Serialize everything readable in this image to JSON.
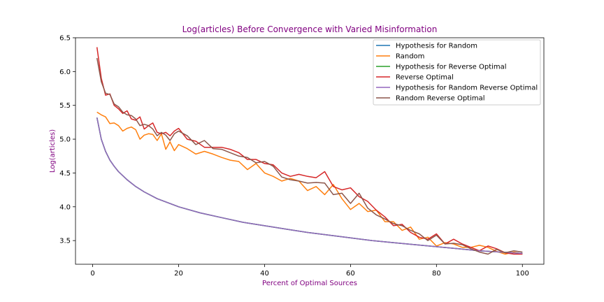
{
  "chart_data": {
    "type": "line",
    "title": "Log(articles) Before Convergence with Varied Misinformation",
    "xlabel": "Percent of Optimal Sources",
    "ylabel": "Log(articles)",
    "label_color": "#800080",
    "xlim": [
      -4,
      105
    ],
    "ylim": [
      3.15,
      6.5
    ],
    "xticks": [
      0,
      20,
      40,
      60,
      80,
      100
    ],
    "xtick_labels": [
      "0",
      "20",
      "40",
      "60",
      "80",
      "100"
    ],
    "yticks": [
      3.5,
      4.0,
      4.5,
      5.0,
      5.5,
      6.0,
      6.5
    ],
    "ytick_labels": [
      "3.5",
      "4.0",
      "4.5",
      "5.0",
      "5.5",
      "6.0",
      "6.5"
    ],
    "grid": false,
    "legend_position": "upper-right",
    "series": [
      {
        "name": "Hypothesis for Random",
        "color": "#1f77b4",
        "x": [
          1,
          2,
          3,
          4,
          5,
          6,
          8,
          10,
          12,
          15,
          20,
          25,
          30,
          35,
          40,
          45,
          50,
          55,
          60,
          65,
          70,
          75,
          80,
          85,
          90,
          95,
          100
        ],
        "y": [
          5.32,
          5.0,
          4.82,
          4.69,
          4.6,
          4.52,
          4.4,
          4.3,
          4.22,
          4.12,
          4.0,
          3.91,
          3.84,
          3.77,
          3.72,
          3.67,
          3.62,
          3.58,
          3.54,
          3.5,
          3.47,
          3.44,
          3.41,
          3.38,
          3.35,
          3.33,
          3.31
        ]
      },
      {
        "name": "Random",
        "color": "#ff7f0e",
        "x": [
          1,
          2,
          3,
          4,
          5,
          6,
          7,
          8,
          9,
          10,
          11,
          12,
          13,
          14,
          15,
          16,
          17,
          18,
          19,
          20,
          22,
          24,
          26,
          28,
          30,
          32,
          34,
          36,
          38,
          40,
          42,
          44,
          46,
          48,
          50,
          52,
          54,
          56,
          58,
          60,
          62,
          64,
          66,
          68,
          70,
          72,
          74,
          76,
          78,
          80,
          82,
          84,
          86,
          88,
          90,
          92,
          94,
          96,
          98,
          100
        ],
        "y": [
          5.4,
          5.36,
          5.33,
          5.23,
          5.24,
          5.2,
          5.12,
          5.16,
          5.18,
          5.14,
          5.0,
          5.06,
          5.08,
          5.07,
          4.98,
          5.08,
          4.85,
          4.96,
          4.83,
          4.92,
          4.86,
          4.78,
          4.82,
          4.78,
          4.73,
          4.69,
          4.67,
          4.55,
          4.64,
          4.5,
          4.45,
          4.38,
          4.42,
          4.38,
          4.24,
          4.3,
          4.18,
          4.33,
          4.12,
          3.96,
          4.05,
          3.93,
          3.95,
          3.78,
          3.78,
          3.65,
          3.7,
          3.52,
          3.55,
          3.42,
          3.47,
          3.45,
          3.4,
          3.4,
          3.43,
          3.4,
          3.34,
          3.3,
          3.33,
          3.3
        ]
      },
      {
        "name": "Hypothesis for Reverse Optimal",
        "color": "#2ca02c",
        "x": [
          1,
          2,
          3,
          4,
          5,
          6,
          8,
          10,
          12,
          15,
          20,
          25,
          30,
          35,
          40,
          45,
          50,
          55,
          60,
          65,
          70,
          75,
          80,
          85,
          90,
          95,
          100
        ],
        "y": [
          5.32,
          5.0,
          4.82,
          4.69,
          4.6,
          4.52,
          4.4,
          4.3,
          4.22,
          4.12,
          4.0,
          3.91,
          3.84,
          3.77,
          3.72,
          3.67,
          3.62,
          3.58,
          3.54,
          3.5,
          3.47,
          3.44,
          3.41,
          3.38,
          3.35,
          3.33,
          3.31
        ]
      },
      {
        "name": "Reverse Optimal",
        "color": "#d62728",
        "x": [
          1,
          2,
          3,
          4,
          5,
          6,
          7,
          8,
          9,
          10,
          11,
          12,
          13,
          14,
          15,
          16,
          17,
          18,
          19,
          20,
          22,
          24,
          26,
          28,
          30,
          32,
          34,
          36,
          38,
          40,
          42,
          44,
          46,
          48,
          50,
          52,
          54,
          56,
          58,
          60,
          62,
          64,
          66,
          68,
          70,
          72,
          74,
          76,
          78,
          80,
          82,
          84,
          86,
          88,
          90,
          92,
          94,
          96,
          98,
          100
        ],
        "y": [
          6.36,
          5.9,
          5.65,
          5.67,
          5.5,
          5.45,
          5.38,
          5.42,
          5.3,
          5.28,
          5.33,
          5.15,
          5.2,
          5.24,
          5.1,
          5.08,
          5.1,
          5.05,
          5.12,
          5.16,
          5.0,
          4.97,
          4.88,
          4.88,
          4.88,
          4.85,
          4.8,
          4.7,
          4.7,
          4.64,
          4.62,
          4.5,
          4.45,
          4.48,
          4.45,
          4.43,
          4.52,
          4.3,
          4.25,
          4.28,
          4.15,
          4.08,
          3.95,
          3.85,
          3.72,
          3.74,
          3.62,
          3.55,
          3.52,
          3.6,
          3.45,
          3.52,
          3.45,
          3.4,
          3.35,
          3.42,
          3.38,
          3.32,
          3.3,
          3.3
        ]
      },
      {
        "name": "Hypothesis for Random Reverse Optimal",
        "color": "#9467bd",
        "x": [
          1,
          2,
          3,
          4,
          5,
          6,
          8,
          10,
          12,
          15,
          20,
          25,
          30,
          35,
          40,
          45,
          50,
          55,
          60,
          65,
          70,
          75,
          80,
          85,
          90,
          95,
          100
        ],
        "y": [
          5.32,
          5.0,
          4.82,
          4.69,
          4.6,
          4.52,
          4.4,
          4.3,
          4.22,
          4.12,
          4.0,
          3.91,
          3.84,
          3.77,
          3.72,
          3.67,
          3.62,
          3.58,
          3.54,
          3.5,
          3.47,
          3.44,
          3.41,
          3.38,
          3.35,
          3.33,
          3.31
        ]
      },
      {
        "name": "Random Reverse Optimal",
        "color": "#8c564b",
        "x": [
          1,
          2,
          3,
          4,
          5,
          6,
          7,
          8,
          9,
          10,
          11,
          12,
          13,
          14,
          15,
          16,
          17,
          18,
          19,
          20,
          22,
          24,
          26,
          28,
          30,
          32,
          34,
          36,
          38,
          40,
          42,
          44,
          46,
          48,
          50,
          52,
          54,
          56,
          58,
          60,
          62,
          64,
          66,
          68,
          70,
          72,
          74,
          76,
          78,
          80,
          82,
          84,
          86,
          88,
          90,
          92,
          94,
          96,
          98,
          100
        ],
        "y": [
          6.2,
          5.85,
          5.68,
          5.66,
          5.52,
          5.48,
          5.4,
          5.36,
          5.35,
          5.3,
          5.2,
          5.22,
          5.2,
          5.15,
          5.05,
          5.1,
          5.06,
          4.98,
          5.08,
          5.12,
          5.05,
          4.92,
          4.98,
          4.86,
          4.85,
          4.8,
          4.75,
          4.73,
          4.65,
          4.67,
          4.6,
          4.44,
          4.4,
          4.38,
          4.35,
          4.36,
          4.35,
          4.18,
          4.2,
          4.05,
          4.2,
          3.98,
          3.88,
          3.82,
          3.75,
          3.72,
          3.65,
          3.6,
          3.5,
          3.58,
          3.45,
          3.46,
          3.44,
          3.38,
          3.33,
          3.3,
          3.37,
          3.32,
          3.35,
          3.33
        ]
      }
    ]
  }
}
